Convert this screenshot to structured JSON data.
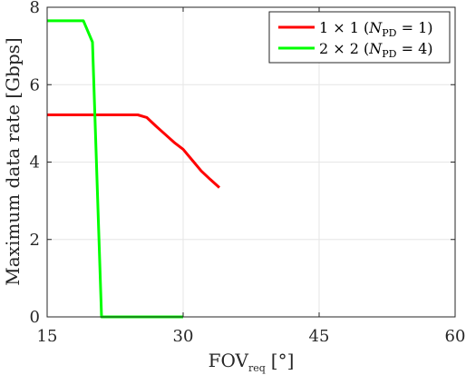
{
  "chart_data": {
    "type": "line",
    "xlabel": "FOV",
    "xlabel_sub": "req",
    "xlabel_unit": "[°]",
    "ylabel": "Maximum data rate [Gbps]",
    "xlim": [
      15,
      60
    ],
    "ylim": [
      0,
      8
    ],
    "xticks": [
      15,
      30,
      45,
      60
    ],
    "yticks": [
      0,
      2,
      4,
      6,
      8
    ],
    "grid": true,
    "legend_position": "top-right",
    "series": [
      {
        "name": "1 × 1 (N_PD = 1)",
        "legend_main": "1 × 1 (",
        "legend_var": "N",
        "legend_sub": "PD",
        "legend_tail": " = 1)",
        "color": "#ff0000",
        "x": [
          15,
          25,
          26,
          27,
          28,
          29,
          30,
          31,
          32,
          33,
          34
        ],
        "y": [
          5.22,
          5.22,
          5.15,
          4.93,
          4.72,
          4.51,
          4.33,
          4.05,
          3.77,
          3.55,
          3.34
        ]
      },
      {
        "name": "2 × 2 (N_PD = 4)",
        "legend_main": "2 × 2 (",
        "legend_var": "N",
        "legend_sub": "PD",
        "legend_tail": " = 4)",
        "color": "#00ff00",
        "x": [
          15,
          19,
          20,
          21,
          30
        ],
        "y": [
          7.65,
          7.65,
          7.1,
          0,
          0
        ]
      }
    ]
  }
}
